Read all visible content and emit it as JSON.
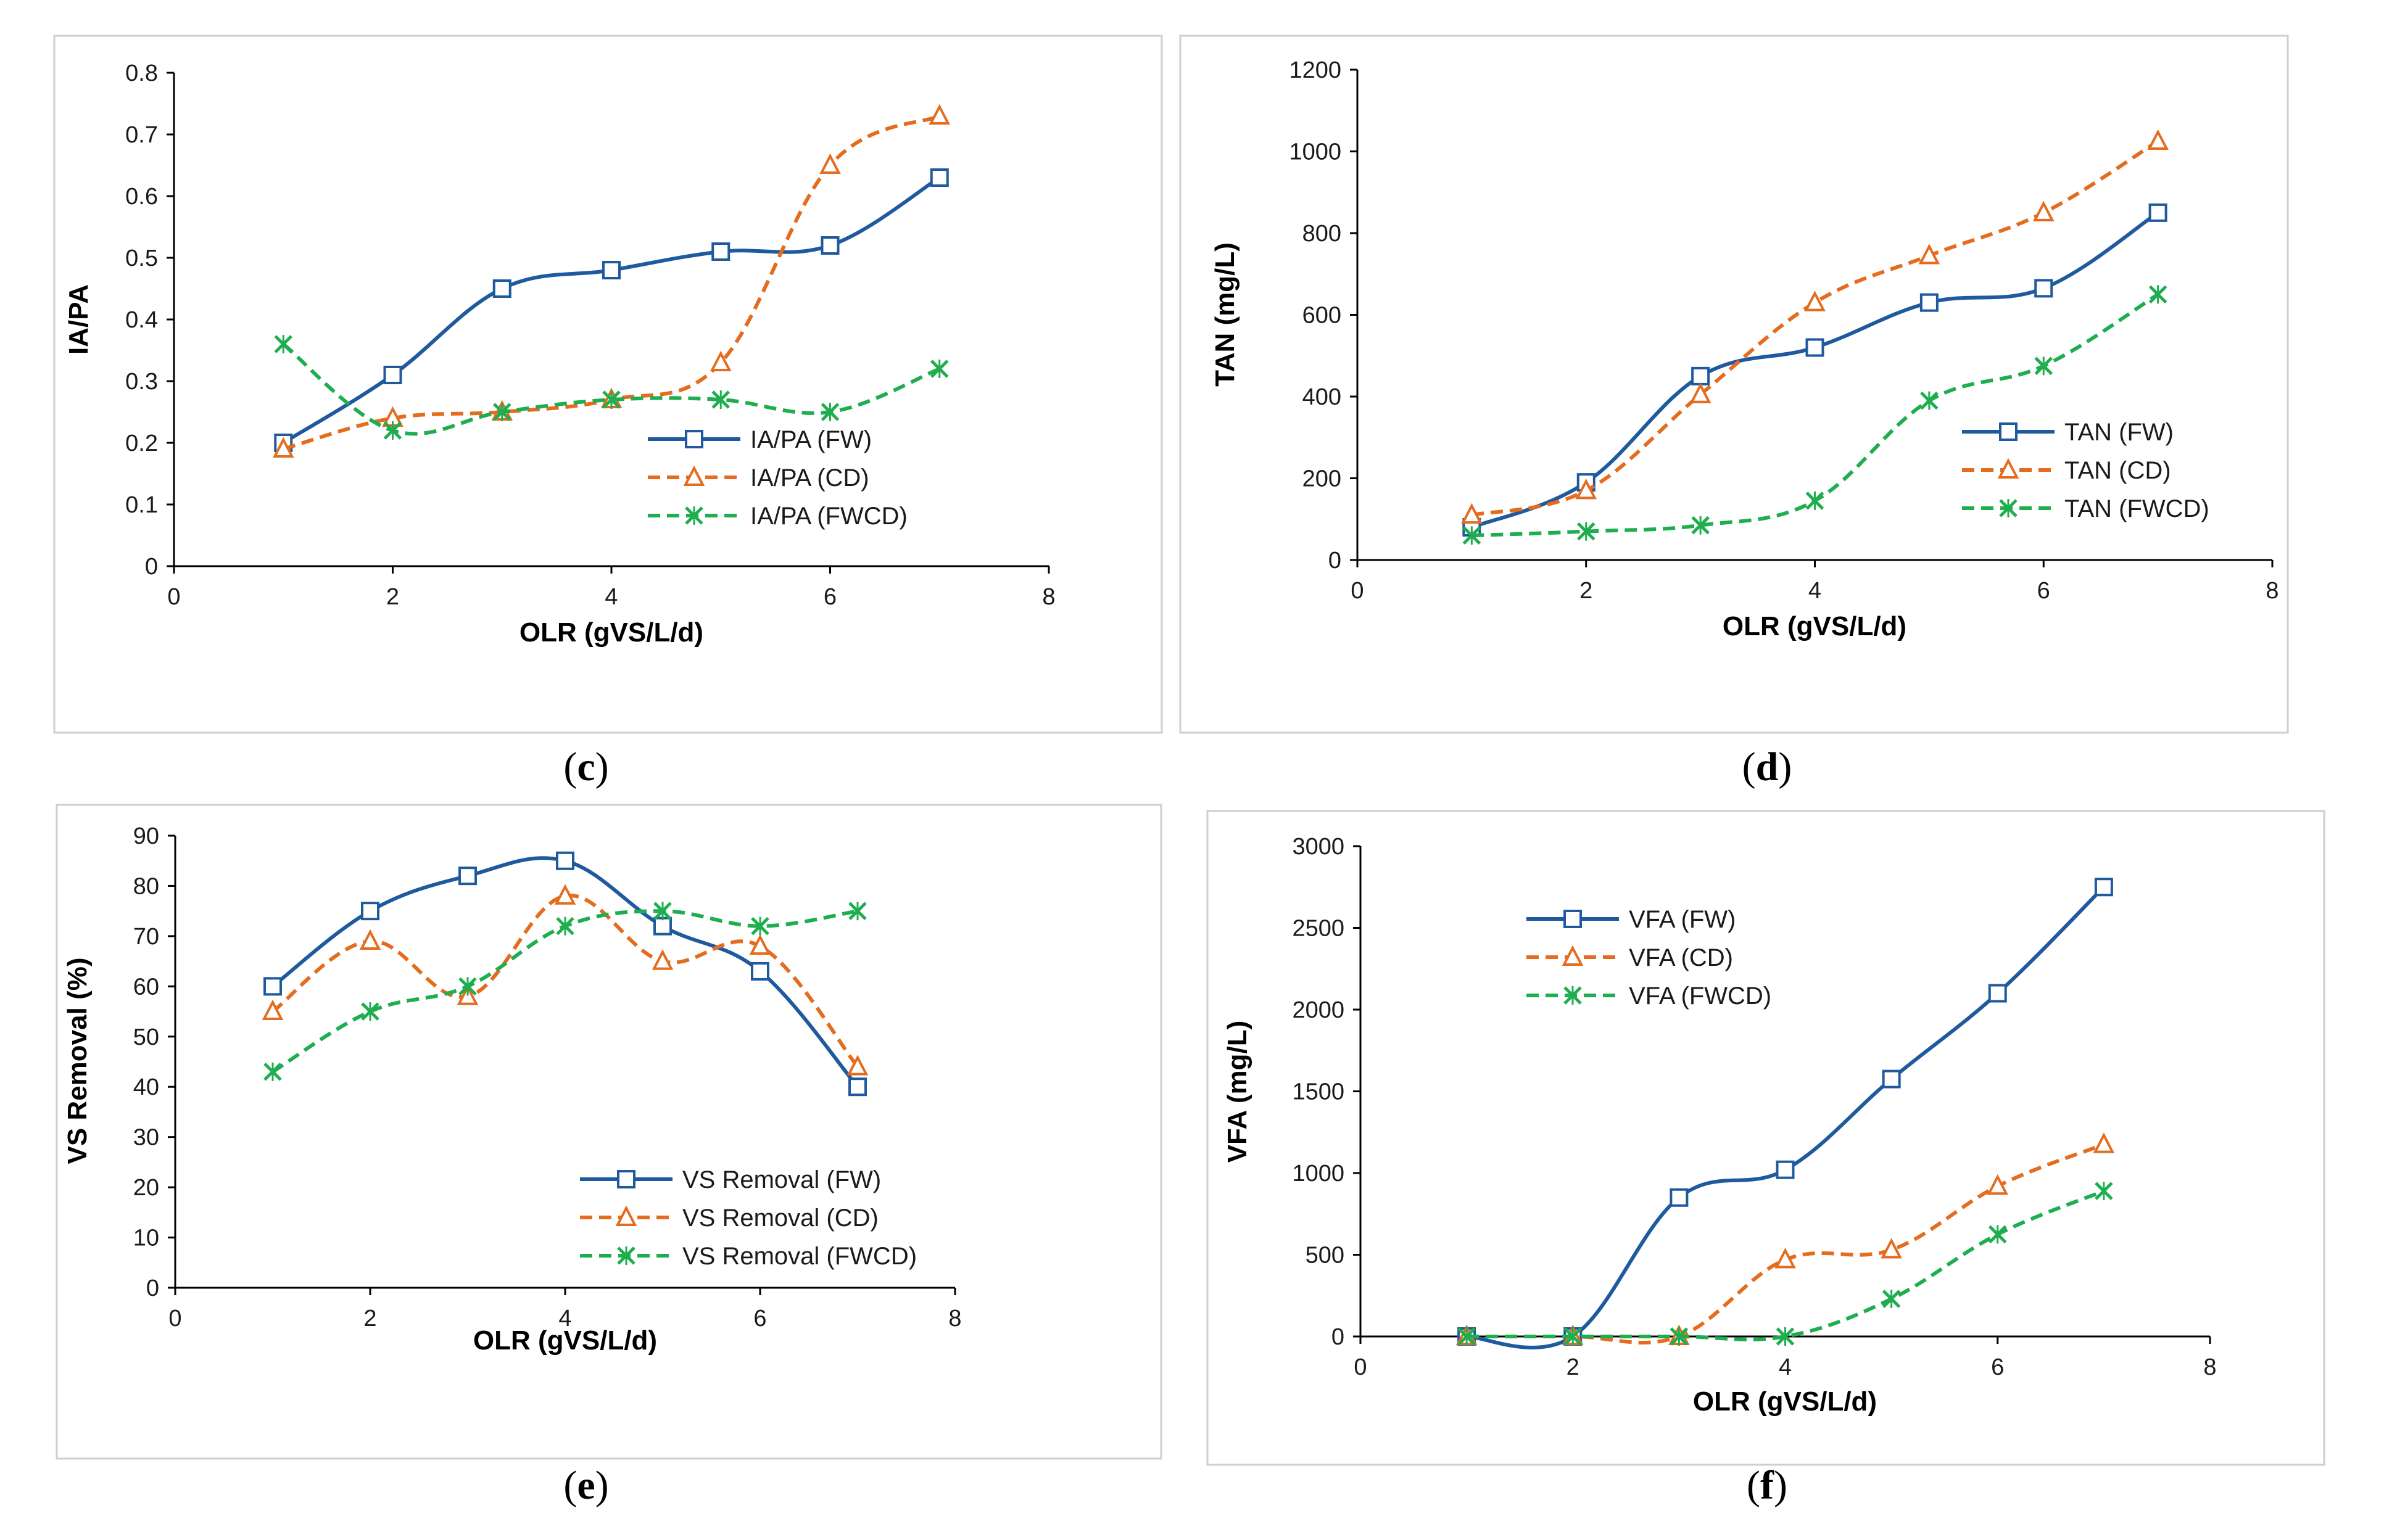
{
  "charts": [
    {
      "id": "c",
      "caption_letter": "c",
      "chart_data": {
        "type": "line",
        "ylabel": "IA/PA",
        "xlabel": "OLR (gVS/L/d)",
        "xlim": [
          0,
          8
        ],
        "ylim": [
          0,
          0.8
        ],
        "xticks": [
          0,
          2,
          4,
          6,
          8
        ],
        "xtick_labels": [
          "0",
          "2",
          "4",
          "6",
          "8"
        ],
        "yticks": [
          0,
          0.1,
          0.2,
          0.3,
          0.4,
          0.5,
          0.6,
          0.7,
          0.8
        ],
        "ytick_labels": [
          "0",
          "0.1",
          "0.2",
          "0.3",
          "0.4",
          "0.5",
          "0.6",
          "0.7",
          "0.8"
        ],
        "x": [
          1,
          2,
          3,
          4,
          5,
          6,
          7
        ],
        "legend_position": "lower-right",
        "series": [
          {
            "name": "IA/PA (FW)",
            "values": [
              0.2,
              0.31,
              0.45,
              0.48,
              0.51,
              0.52,
              0.63
            ],
            "color": "#1f5a9e",
            "marker": "square",
            "dash": "solid"
          },
          {
            "name": "IA/PA (CD)",
            "values": [
              0.19,
              0.24,
              0.25,
              0.27,
              0.33,
              0.65,
              0.73
            ],
            "color": "#e46c1e",
            "marker": "triangle",
            "dash": "dashed"
          },
          {
            "name": "IA/PA (FWCD)",
            "values": [
              0.36,
              0.22,
              0.25,
              0.27,
              0.27,
              0.25,
              0.32
            ],
            "color": "#1fae4f",
            "marker": "x",
            "dash": "dashed"
          }
        ]
      }
    },
    {
      "id": "d",
      "caption_letter": "d",
      "chart_data": {
        "type": "line",
        "ylabel": "TAN (mg/L)",
        "xlabel": "OLR (gVS/L/d)",
        "xlim": [
          0,
          8
        ],
        "ylim": [
          0,
          1200
        ],
        "xticks": [
          0,
          2,
          4,
          6,
          8
        ],
        "xtick_labels": [
          "0",
          "2",
          "4",
          "6",
          "8"
        ],
        "yticks": [
          0,
          200,
          400,
          600,
          800,
          1000,
          1200
        ],
        "ytick_labels": [
          "0",
          "200",
          "400",
          "600",
          "800",
          "1000",
          "1200"
        ],
        "x": [
          1,
          2,
          3,
          4,
          5,
          6,
          7
        ],
        "legend_position": "lower-right",
        "series": [
          {
            "name": "TAN (FW)",
            "values": [
              80,
              190,
              450,
              520,
              630,
              665,
              850
            ],
            "color": "#1f5a9e",
            "marker": "square",
            "dash": "solid"
          },
          {
            "name": "TAN (CD)",
            "values": [
              110,
              170,
              405,
              630,
              745,
              850,
              1025
            ],
            "color": "#e46c1e",
            "marker": "triangle",
            "dash": "dashed"
          },
          {
            "name": "TAN (FWCD)",
            "values": [
              60,
              70,
              85,
              145,
              390,
              475,
              650
            ],
            "color": "#1fae4f",
            "marker": "x",
            "dash": "dashed"
          }
        ]
      }
    },
    {
      "id": "e",
      "caption_letter": "e",
      "chart_data": {
        "type": "line",
        "ylabel": "VS Removal (%)",
        "xlabel": "OLR (gVS/L/d)",
        "xlim": [
          0,
          8
        ],
        "ylim": [
          0,
          90
        ],
        "xticks": [
          0,
          2,
          4,
          6,
          8
        ],
        "xtick_labels": [
          "0",
          "2",
          "4",
          "6",
          "8"
        ],
        "yticks": [
          0,
          10,
          20,
          30,
          40,
          50,
          60,
          70,
          80,
          90
        ],
        "ytick_labels": [
          "0",
          "10",
          "20",
          "30",
          "40",
          "50",
          "60",
          "70",
          "80",
          "90"
        ],
        "x": [
          1,
          2,
          3,
          4,
          5,
          6,
          7
        ],
        "legend_position": "lower-right",
        "series": [
          {
            "name": "VS Removal (FW)",
            "values": [
              60,
              75,
              82,
              85,
              72,
              63,
              40
            ],
            "color": "#1f5a9e",
            "marker": "square",
            "dash": "solid"
          },
          {
            "name": "VS Removal (CD)",
            "values": [
              55,
              69,
              58,
              78,
              65,
              68,
              44
            ],
            "color": "#e46c1e",
            "marker": "triangle",
            "dash": "dashed"
          },
          {
            "name": "VS Removal (FWCD)",
            "values": [
              43,
              55,
              60,
              72,
              75,
              72,
              75
            ],
            "color": "#1fae4f",
            "marker": "x",
            "dash": "dashed"
          }
        ]
      }
    },
    {
      "id": "f",
      "caption_letter": "f",
      "chart_data": {
        "type": "line",
        "ylabel": "VFA (mg/L)",
        "xlabel": "OLR (gVS/L/d)",
        "xlim": [
          0,
          8
        ],
        "ylim": [
          0,
          3000
        ],
        "xticks": [
          0,
          2,
          4,
          6,
          8
        ],
        "xtick_labels": [
          "0",
          "2",
          "4",
          "6",
          "8"
        ],
        "yticks": [
          0,
          500,
          1000,
          1500,
          2000,
          2500,
          3000
        ],
        "ytick_labels": [
          "0",
          "500",
          "1000",
          "1500",
          "2000",
          "2500",
          "3000"
        ],
        "x": [
          1,
          2,
          3,
          4,
          5,
          6,
          7
        ],
        "legend_position": "top-left",
        "series": [
          {
            "name": "VFA (FW)",
            "values": [
              0,
              0,
              850,
              1020,
              1575,
              2100,
              2750
            ],
            "color": "#1f5a9e",
            "marker": "square",
            "dash": "solid"
          },
          {
            "name": "VFA (CD)",
            "values": [
              0,
              0,
              0,
              470,
              530,
              920,
              1175
            ],
            "color": "#e46c1e",
            "marker": "triangle",
            "dash": "dashed"
          },
          {
            "name": "VFA (FWCD)",
            "values": [
              0,
              0,
              0,
              0,
              230,
              625,
              890
            ],
            "color": "#1fae4f",
            "marker": "x",
            "dash": "dashed"
          }
        ]
      }
    }
  ]
}
